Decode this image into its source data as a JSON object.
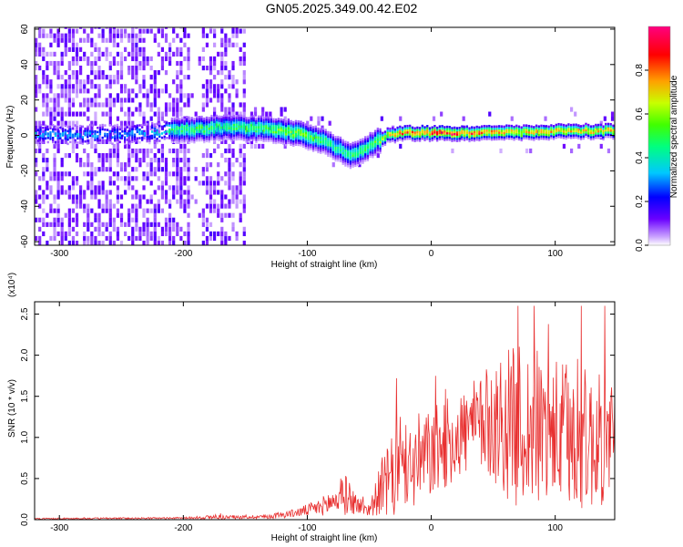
{
  "title": "GN05.2025.349.00.42.E02",
  "chart_data": [
    {
      "type": "heatmap",
      "name": "spectrogram",
      "xlabel": "Height of straight line (km)",
      "ylabel": "Frequency (Hz)",
      "xlim": [
        -320,
        148
      ],
      "ylim": [
        -62,
        61
      ],
      "xticks": [
        -300,
        -200,
        -100,
        0,
        100
      ],
      "yticks": [
        -60,
        -40,
        -20,
        0,
        20,
        40,
        60
      ],
      "colorbar": {
        "label": "Normalized spectral amplitude",
        "range": [
          0.0,
          1.0
        ],
        "ticks": [
          0.0,
          0.2,
          0.4,
          0.6,
          0.8
        ],
        "colormap": [
          "#ffffff",
          "#c8a0ff",
          "#6a00ff",
          "#0000ff",
          "#00c8ff",
          "#00ff80",
          "#40ff00",
          "#c8ff00",
          "#ffa000",
          "#ff0000",
          "#ff0080"
        ]
      },
      "ridge": {
        "x": [
          -320,
          -250,
          -200,
          -160,
          -130,
          -110,
          -90,
          -75,
          -65,
          -55,
          -45,
          -35,
          -20,
          0,
          20,
          50,
          100,
          148
        ],
        "freq": [
          0,
          0,
          3,
          4,
          3,
          1,
          -3,
          -8,
          -12,
          -8,
          -4,
          0,
          1,
          1,
          1,
          1,
          2,
          2
        ],
        "amplitude": [
          0.35,
          0.3,
          0.5,
          0.5,
          0.55,
          0.6,
          0.5,
          0.45,
          0.5,
          0.5,
          0.55,
          0.7,
          0.85,
          0.9,
          0.9,
          0.8,
          0.75,
          0.75
        ]
      }
    },
    {
      "type": "line",
      "name": "snr",
      "xlabel": "Height of straight line (km)",
      "ylabel": "SNR (10 * v/v)",
      "scale_label": "(x10⁴)",
      "xlim": [
        -320,
        148
      ],
      "ylim": [
        0.0,
        2.65
      ],
      "xticks": [
        -300,
        -200,
        -100,
        0,
        100
      ],
      "yticks": [
        0.0,
        0.5,
        1.0,
        1.5,
        2.0,
        2.5
      ],
      "color": "#e83030",
      "envelope": {
        "x": [
          -320,
          -200,
          -175,
          -150,
          -130,
          -110,
          -90,
          -75,
          -68,
          -60,
          -50,
          -45,
          -40,
          -35,
          -30,
          -25,
          -20,
          -10,
          0,
          10,
          20,
          30,
          40,
          50,
          60,
          70,
          80,
          90,
          100,
          110,
          120,
          130,
          140,
          148
        ],
        "base": [
          0.01,
          0.02,
          0.03,
          0.03,
          0.04,
          0.08,
          0.15,
          0.25,
          0.3,
          0.18,
          0.12,
          0.25,
          0.4,
          0.45,
          0.5,
          0.55,
          0.6,
          0.7,
          0.8,
          0.9,
          1.0,
          1.1,
          1.15,
          1.2,
          1.15,
          1.15,
          1.1,
          1.1,
          1.05,
          1.0,
          1.0,
          0.95,
          0.95,
          0.95
        ],
        "amp": [
          0.01,
          0.01,
          0.03,
          0.02,
          0.03,
          0.05,
          0.1,
          0.2,
          0.25,
          0.12,
          0.08,
          0.2,
          0.35,
          0.45,
          0.55,
          0.5,
          0.5,
          0.6,
          0.55,
          0.55,
          0.55,
          0.55,
          0.6,
          0.75,
          0.9,
          1.0,
          1.0,
          0.95,
          0.9,
          0.95,
          0.9,
          0.85,
          0.8,
          0.8
        ]
      },
      "spikes": [
        {
          "x": -174,
          "y": 0.06
        },
        {
          "x": -73,
          "y": 0.5
        },
        {
          "x": -55,
          "y": 0.28
        },
        {
          "x": -28,
          "y": 1.72
        },
        {
          "x": -25,
          "y": 1.25
        },
        {
          "x": 70,
          "y": 2.6
        },
        {
          "x": 83,
          "y": 2.6
        },
        {
          "x": 121,
          "y": 2.6
        },
        {
          "x": 140,
          "y": 2.6
        }
      ]
    }
  ]
}
